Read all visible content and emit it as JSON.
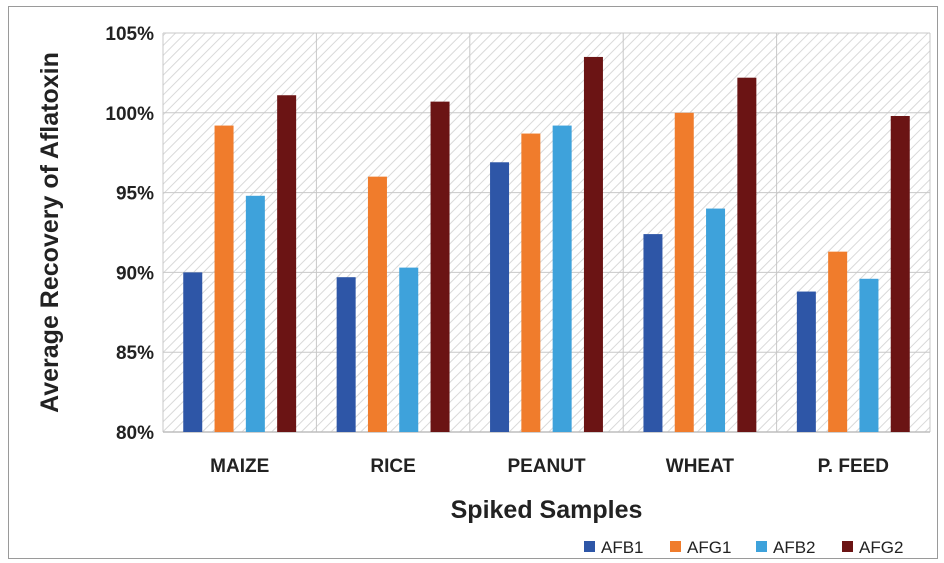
{
  "chart_data": {
    "type": "bar",
    "categories": [
      "MAIZE",
      "RICE",
      "PEANUT",
      "WHEAT",
      "P. FEED"
    ],
    "series": [
      {
        "name": "AFB1",
        "color": "#2E56A7",
        "values": [
          0.9,
          0.897,
          0.969,
          0.924,
          0.888
        ]
      },
      {
        "name": "AFG1",
        "color": "#F07C2C",
        "values": [
          0.992,
          0.96,
          0.987,
          1.0,
          0.913
        ]
      },
      {
        "name": "AFB2",
        "color": "#3EA2DB",
        "values": [
          0.948,
          0.903,
          0.992,
          0.94,
          0.896
        ]
      },
      {
        "name": "AFG2",
        "color": "#6B1414",
        "values": [
          1.011,
          1.007,
          1.035,
          1.022,
          0.998
        ]
      }
    ],
    "xlabel": "Spiked Samples",
    "ylabel": "Average Recovery of Aflatoxin",
    "ylim": [
      0.8,
      1.05
    ],
    "yticks": [
      0.8,
      0.85,
      0.9,
      0.95,
      1.0,
      1.05
    ],
    "ytick_labels": [
      "80%",
      "85%",
      "90%",
      "95%",
      "100%",
      "105%"
    ],
    "grid": true,
    "legend_position": "bottom-right"
  }
}
